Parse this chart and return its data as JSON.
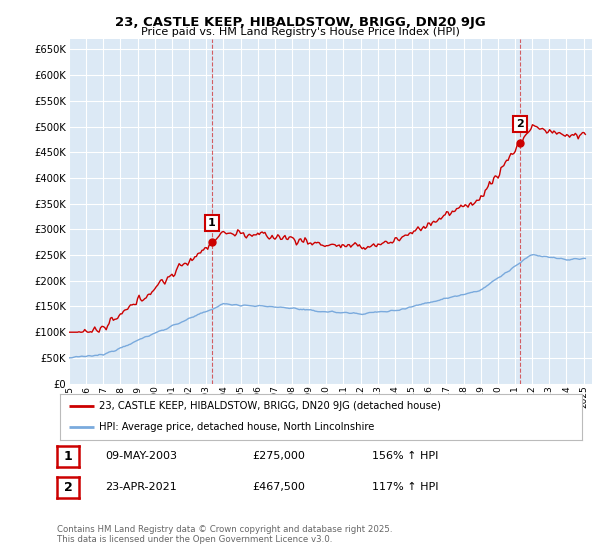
{
  "title": "23, CASTLE KEEP, HIBALDSTOW, BRIGG, DN20 9JG",
  "subtitle": "Price paid vs. HM Land Registry's House Price Index (HPI)",
  "ylim": [
    0,
    670000
  ],
  "yticks": [
    0,
    50000,
    100000,
    150000,
    200000,
    250000,
    300000,
    350000,
    400000,
    450000,
    500000,
    550000,
    600000,
    650000
  ],
  "background_color": "#ffffff",
  "plot_bg_color": "#dce9f5",
  "grid_color": "#ffffff",
  "red_line_color": "#cc0000",
  "blue_line_color": "#7aaadd",
  "legend_label_red": "23, CASTLE KEEP, HIBALDSTOW, BRIGG, DN20 9JG (detached house)",
  "legend_label_blue": "HPI: Average price, detached house, North Lincolnshire",
  "sale1_year": 2003.37,
  "sale1_value": 275000,
  "sale2_year": 2021.29,
  "sale2_value": 467500,
  "table_rows": [
    {
      "num": "1",
      "date": "09-MAY-2003",
      "price": "£275,000",
      "hpi": "156% ↑ HPI"
    },
    {
      "num": "2",
      "date": "23-APR-2021",
      "price": "£467,500",
      "hpi": "117% ↑ HPI"
    }
  ],
  "footer": "Contains HM Land Registry data © Crown copyright and database right 2025.\nThis data is licensed under the Open Government Licence v3.0.",
  "year_start": 1995,
  "year_end": 2025
}
